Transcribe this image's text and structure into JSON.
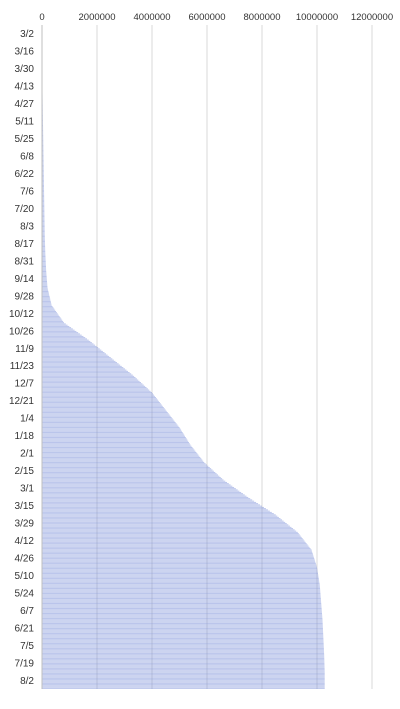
{
  "chart_data": {
    "type": "bar",
    "orientation": "horizontal",
    "title": "",
    "xlabel": "",
    "ylabel": "",
    "xlim": [
      0,
      12000000
    ],
    "x_ticks": [
      "0",
      "2000000",
      "4000000",
      "6000000",
      "8000000",
      "10000000",
      "12000000"
    ],
    "y_tick_labels": [
      "3/2",
      "3/16",
      "3/30",
      "4/13",
      "4/27",
      "5/11",
      "5/25",
      "6/8",
      "6/22",
      "7/6",
      "7/20",
      "8/3",
      "8/17",
      "8/31",
      "9/14",
      "9/28",
      "10/12",
      "10/26",
      "11/9",
      "11/23",
      "12/7",
      "12/21",
      "1/4",
      "1/18",
      "2/1",
      "2/15",
      "3/1",
      "3/15",
      "3/29",
      "4/12",
      "4/26",
      "5/10",
      "5/24",
      "6/7",
      "6/21",
      "7/5",
      "7/19",
      "8/2"
    ],
    "category_step_days": 14,
    "values": [
      0,
      1000,
      3000,
      10000,
      20000,
      30000,
      40000,
      50000,
      60000,
      70000,
      80000,
      90000,
      100000,
      120000,
      150000,
      200000,
      350000,
      800000,
      1700000,
      2500000,
      3300000,
      4000000,
      4500000,
      5000000,
      5400000,
      5900000,
      6600000,
      7500000,
      8500000,
      9300000,
      9800000,
      10000000,
      10100000,
      10150000,
      10200000,
      10230000,
      10260000,
      10280000
    ],
    "bar_color": "#7b8fd9",
    "grid": true,
    "legend": "none"
  }
}
